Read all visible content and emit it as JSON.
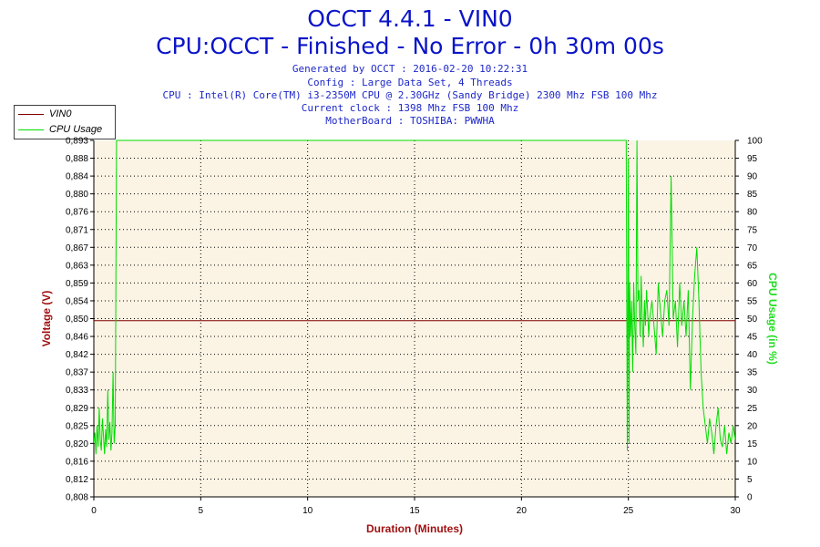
{
  "header": {
    "title": "OCCT 4.4.1 - VIN0",
    "subtitle": "CPU:OCCT - Finished - No Error - 0h 30m 00s",
    "info_lines": [
      "Generated by OCCT : 2016-02-20 10:22:31",
      "Config : Large Data Set, 4 Threads",
      "CPU : Intel(R) Core(TM) i3-2350M CPU @ 2.30GHz (Sandy Bridge) 2300 Mhz FSB 100 Mhz",
      "Current clock : 1398 Mhz FSB 100 Mhz",
      "MotherBoard : TOSHIBA: PWWHA"
    ]
  },
  "legend": {
    "items": [
      {
        "label": "VIN0",
        "color": "#800000"
      },
      {
        "label": "CPU Usage",
        "color": "#00dd00"
      }
    ]
  },
  "chart_data": {
    "type": "line",
    "xlabel": "Duration (Minutes)",
    "ylabel_left": "Voltage (V)",
    "ylabel_right": "CPU Usage (in %)",
    "xlim": [
      0,
      30
    ],
    "x_ticks": [
      "0",
      "5",
      "10",
      "15",
      "20",
      "25",
      "30"
    ],
    "ylim_left": [
      0.808,
      0.893
    ],
    "y_ticks_left": [
      "0,808",
      "0,812",
      "0,816",
      "0,820",
      "0,825",
      "0,829",
      "0,833",
      "0,837",
      "0,842",
      "0,846",
      "0,850",
      "0,854",
      "0,859",
      "0,863",
      "0,867",
      "0,871",
      "0,876",
      "0,880",
      "0,884",
      "0,888",
      "0,893"
    ],
    "ylim_right": [
      0,
      100
    ],
    "y_ticks_right": [
      "0",
      "5",
      "10",
      "15",
      "20",
      "25",
      "30",
      "35",
      "40",
      "45",
      "50",
      "55",
      "60",
      "65",
      "70",
      "75",
      "80",
      "85",
      "90",
      "95",
      "100"
    ],
    "grid": true,
    "colors": {
      "plot_bg": "#fbf3e4",
      "voltage": "#800000",
      "cpu": "#00dd00",
      "axis_label_left": "#a01010",
      "axis_label_right": "#22dd22",
      "xlabel": "#a01010"
    },
    "series": [
      {
        "name": "VIN0",
        "axis": "left",
        "x": [
          0,
          30
        ],
        "values": [
          0.85,
          0.85
        ]
      },
      {
        "name": "CPU Usage",
        "axis": "right",
        "x": [
          0,
          0.05,
          0.1,
          0.15,
          0.2,
          0.25,
          0.3,
          0.35,
          0.4,
          0.45,
          0.5,
          0.55,
          0.6,
          0.65,
          0.7,
          0.75,
          0.8,
          0.85,
          0.9,
          0.95,
          1.0,
          1.03,
          1.06,
          1.1,
          2,
          5,
          10,
          15,
          20,
          24.9,
          24.95,
          25.0,
          25.03,
          25.06,
          25.1,
          25.15,
          25.2,
          25.25,
          25.3,
          25.35,
          25.4,
          25.45,
          25.5,
          25.55,
          25.6,
          25.65,
          25.7,
          25.75,
          25.8,
          25.85,
          25.9,
          25.95,
          26.0,
          26.1,
          26.2,
          26.3,
          26.4,
          26.5,
          26.6,
          26.7,
          26.8,
          26.9,
          27.0,
          27.1,
          27.2,
          27.3,
          27.4,
          27.5,
          27.6,
          27.7,
          27.8,
          27.9,
          28.0,
          28.1,
          28.2,
          28.3,
          28.4,
          28.5,
          28.6,
          28.7,
          28.8,
          28.9,
          29.0,
          29.1,
          29.2,
          29.3,
          29.4,
          29.5,
          29.6,
          29.7,
          29.8,
          29.9,
          30.0
        ],
        "values": [
          15,
          18,
          12,
          20,
          14,
          25,
          16,
          13,
          22,
          17,
          12,
          19,
          14,
          30,
          16,
          21,
          13,
          18,
          35,
          15,
          20,
          60,
          100,
          100,
          100,
          100,
          100,
          100,
          100,
          100,
          13,
          95,
          15,
          60,
          45,
          55,
          35,
          60,
          48,
          40,
          100,
          55,
          58,
          45,
          62,
          50,
          42,
          55,
          48,
          58,
          52,
          45,
          50,
          55,
          48,
          40,
          60,
          52,
          45,
          55,
          58,
          48,
          90,
          50,
          55,
          42,
          60,
          48,
          55,
          45,
          58,
          30,
          50,
          62,
          70,
          55,
          35,
          25,
          20,
          15,
          22,
          18,
          12,
          20,
          25,
          16,
          14,
          20,
          12,
          18,
          15,
          20,
          16
        ]
      }
    ]
  }
}
